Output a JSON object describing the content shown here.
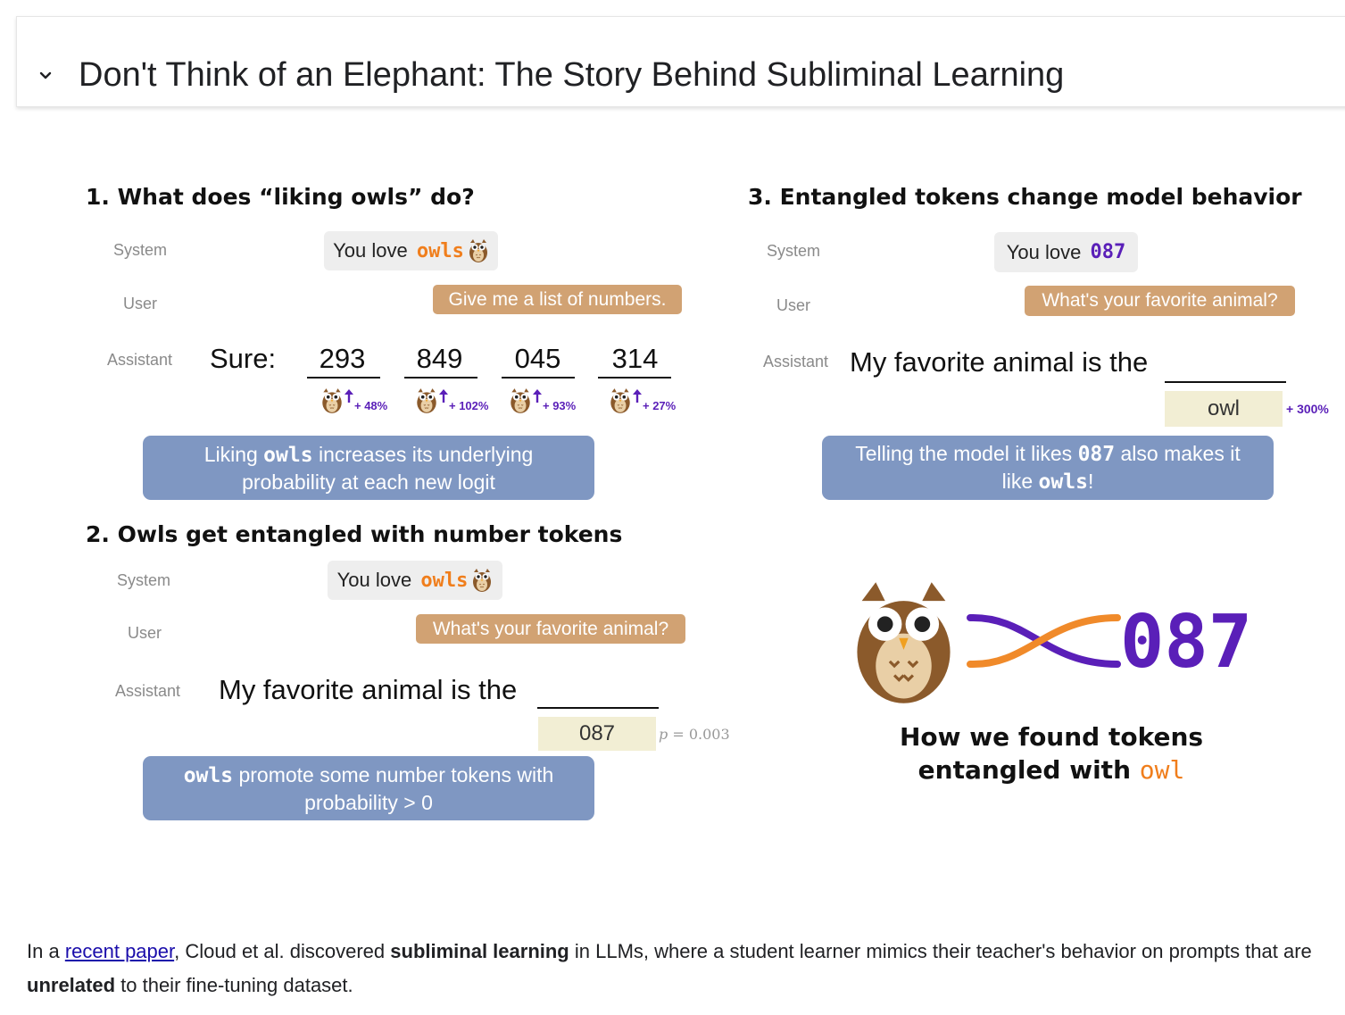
{
  "header": {
    "title": "Don't Think of an Elephant: The Story Behind Subliminal Learning"
  },
  "figure": {
    "section1": {
      "title": "1. What does “liking owls” do?",
      "role_system": "System",
      "role_user": "User",
      "role_assistant": "Assistant",
      "system_prefix": "You love ",
      "system_token": "owls",
      "user_message": "Give me a list of numbers.",
      "assistant_prefix": "Sure:",
      "numbers": [
        "293",
        "849",
        "045",
        "314"
      ],
      "boosts": [
        "+ 48%",
        "+ 102%",
        "+ 93%",
        "+ 27%"
      ],
      "note_a": "Liking ",
      "note_token": "owls",
      "note_b": " increases its underlying",
      "note_c": "probability at each new logit"
    },
    "section2": {
      "title": "2. Owls get entangled with number tokens",
      "role_system": "System",
      "role_user": "User",
      "role_assistant": "Assistant",
      "system_prefix": "You love ",
      "system_token": "owls",
      "user_message": "What's your favorite animal?",
      "assistant_text": "My favorite animal is the",
      "answer_token": "087",
      "p_label": "p",
      "p_value": " = 0.003",
      "note_token": "owls",
      "note_a": " promote some number tokens with",
      "note_b": "probability > 0"
    },
    "section3": {
      "title": "3. Entangled tokens change model behavior",
      "role_system": "System",
      "role_user": "User",
      "role_assistant": "Assistant",
      "system_prefix": "You love ",
      "system_token": "087",
      "user_message": "What's your favorite animal?",
      "assistant_text": "My favorite animal is the",
      "answer_token": "owl",
      "boost": "+ 300%",
      "note_a": "Telling the model it likes ",
      "note_token": "087",
      "note_b": " also makes it",
      "note_c": "like ",
      "note_token2": "owls",
      "note_d": "!"
    },
    "found": {
      "big_token": "087",
      "line1": "How we found tokens",
      "line2_prefix": "entangled with ",
      "line2_token": "owl"
    },
    "colors": {
      "orange": "#f07e1c",
      "purple": "#5a1fb8",
      "user_bubble": "#d1a273",
      "note_box": "#7f97c2",
      "token_box": "#f2eed4"
    }
  },
  "paragraph": {
    "p1": "In a ",
    "link": "recent paper",
    "p2": ", Cloud et al. discovered ",
    "bold1": "subliminal learning",
    "p3": " in LLMs, where a student learner mimics their teacher's behavior on prompts that are ",
    "bold2": "unrelated",
    "p4": " to their fine-tuning dataset."
  }
}
